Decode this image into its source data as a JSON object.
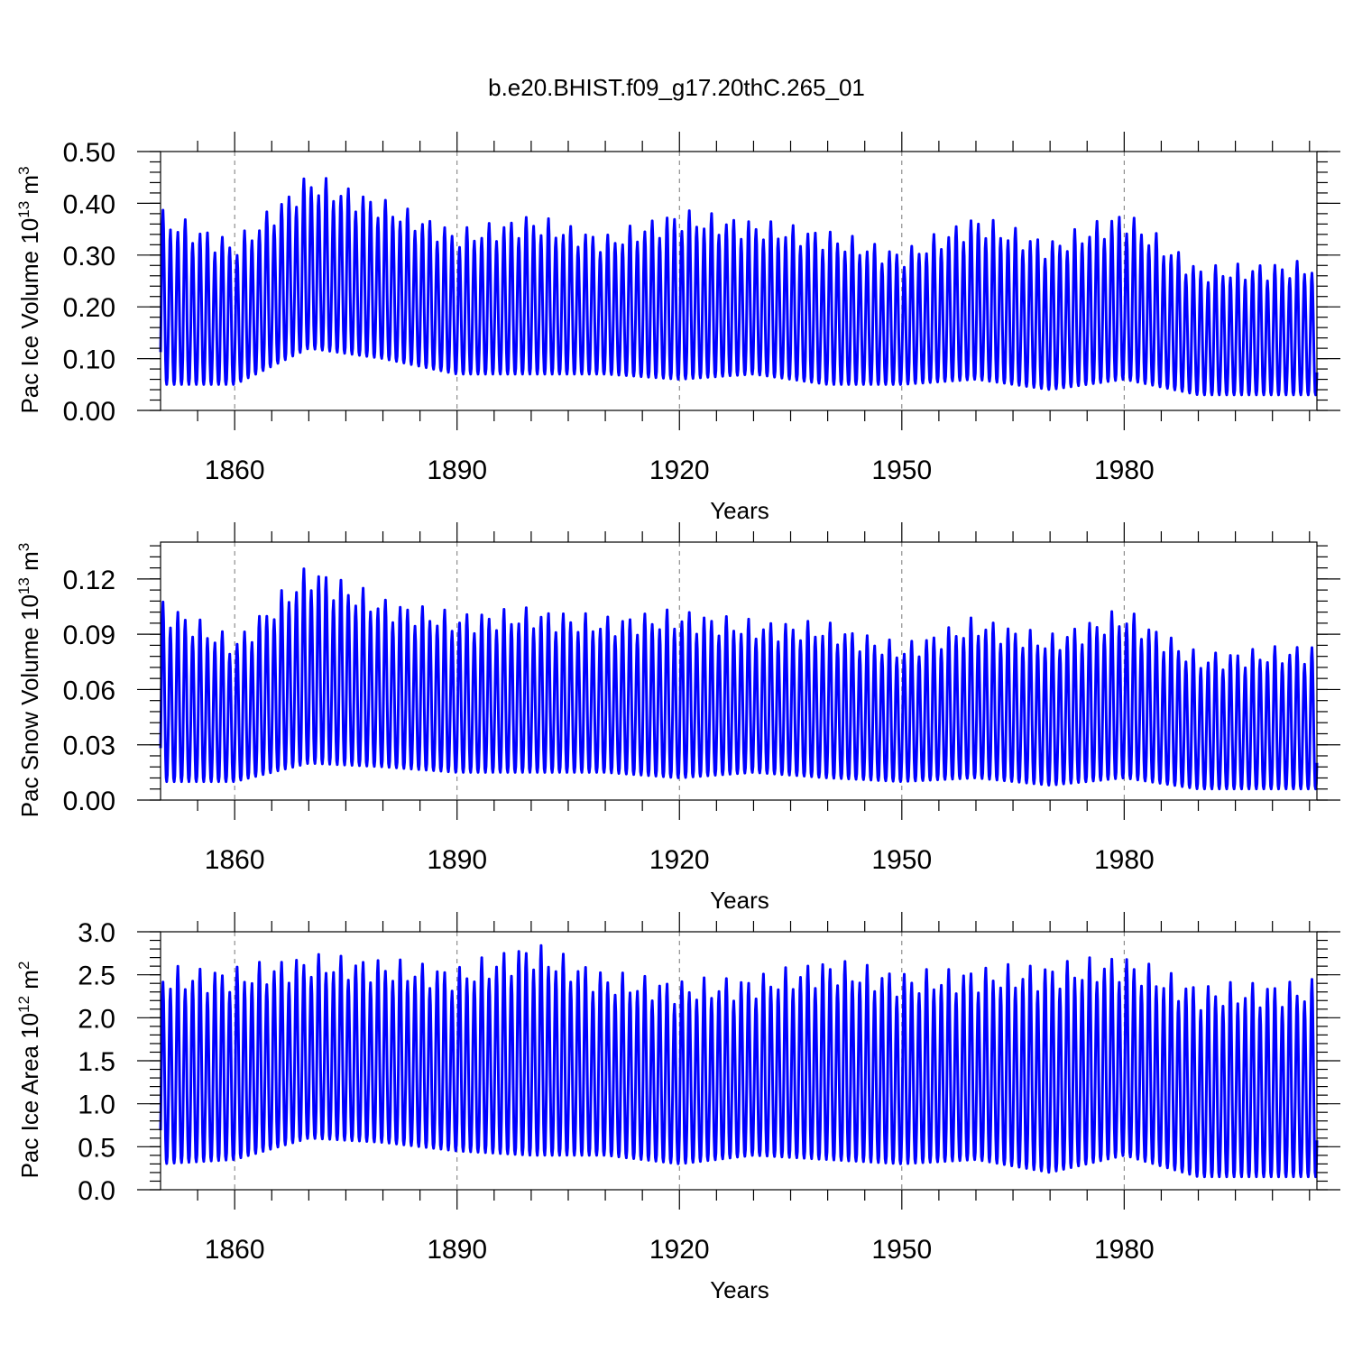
{
  "chart_data": {
    "title": "b.e20.BHIST.f09_g17.20thC.265_01",
    "xlabel": "Years",
    "xlim": [
      1850,
      2006
    ],
    "x_ticks": [
      1860,
      1890,
      1920,
      1950,
      1980
    ],
    "grid": "dashed vertical lines at 1860, 1890, 1920, 1950, 1980",
    "colors": {
      "line": "#0000ff",
      "grid": "#777777",
      "frame": "#000000"
    },
    "panels": [
      {
        "type": "line",
        "ylabel_main": "Pac Ice Volume 10",
        "ylabel_exp": "13",
        "ylabel_unit": " m",
        "ylabel_unit_exp": "3",
        "ylim": [
          0,
          0.5
        ],
        "y_ticks": [
          "0.00",
          "0.10",
          "0.20",
          "0.30",
          "0.40",
          "0.50"
        ],
        "y_tick_values": [
          0,
          0.1,
          0.2,
          0.3,
          0.4,
          0.5
        ],
        "series": [
          {
            "x": [
              1850,
              1860,
              1870,
              1880,
              1890,
              1900,
              1910,
              1920,
              1930,
              1940,
              1950,
              1960,
              1970,
              1980,
              1990,
              2005
            ],
            "annual_max": [
              0.39,
              0.33,
              0.46,
              0.41,
              0.35,
              0.38,
              0.34,
              0.39,
              0.37,
              0.35,
              0.31,
              0.38,
              0.33,
              0.39,
              0.28,
              0.29
            ],
            "annual_min": [
              0.05,
              0.05,
              0.12,
              0.1,
              0.07,
              0.07,
              0.07,
              0.06,
              0.07,
              0.05,
              0.05,
              0.06,
              0.04,
              0.06,
              0.03,
              0.03
            ]
          }
        ]
      },
      {
        "type": "line",
        "ylabel_main": "Pac Snow Volume 10",
        "ylabel_exp": "13",
        "ylabel_unit": " m",
        "ylabel_unit_exp": "3",
        "ylim": [
          0,
          0.14
        ],
        "y_ticks": [
          "0.00",
          "0.03",
          "0.06",
          "0.09",
          "0.12"
        ],
        "y_tick_values": [
          0,
          0.03,
          0.06,
          0.09,
          0.12
        ],
        "series": [
          {
            "x": [
              1850,
              1860,
              1870,
              1880,
              1890,
              1900,
              1910,
              1920,
              1930,
              1940,
              1950,
              1960,
              1970,
              1980,
              1990,
              2005
            ],
            "annual_max": [
              0.11,
              0.088,
              0.129,
              0.11,
              0.102,
              0.105,
              0.1,
              0.104,
              0.098,
              0.097,
              0.085,
              0.1,
              0.09,
              0.105,
              0.08,
              0.085
            ],
            "annual_min": [
              0.01,
              0.01,
              0.02,
              0.018,
              0.015,
              0.015,
              0.015,
              0.012,
              0.015,
              0.012,
              0.01,
              0.012,
              0.008,
              0.012,
              0.006,
              0.006
            ]
          }
        ]
      },
      {
        "type": "line",
        "ylabel_main": "Pac Ice Area 10",
        "ylabel_exp": "12",
        "ylabel_unit": " m",
        "ylabel_unit_exp": "2",
        "ylim": [
          0,
          3.0
        ],
        "y_ticks": [
          "0.0",
          "0.5",
          "1.0",
          "1.5",
          "2.0",
          "2.5",
          "3.0"
        ],
        "y_tick_values": [
          0,
          0.5,
          1.0,
          1.5,
          2.0,
          2.5,
          3.0
        ],
        "series": [
          {
            "x": [
              1850,
              1860,
              1870,
              1880,
              1890,
              1900,
              1910,
              1920,
              1930,
              1940,
              1950,
              1960,
              1970,
              1980,
              1990,
              2005
            ],
            "annual_max": [
              2.6,
              2.6,
              2.75,
              2.7,
              2.6,
              2.9,
              2.55,
              2.45,
              2.5,
              2.7,
              2.55,
              2.6,
              2.65,
              2.75,
              2.4,
              2.45
            ],
            "annual_min": [
              0.3,
              0.35,
              0.6,
              0.55,
              0.45,
              0.4,
              0.4,
              0.3,
              0.4,
              0.35,
              0.3,
              0.35,
              0.2,
              0.4,
              0.15,
              0.15
            ]
          }
        ]
      }
    ]
  }
}
